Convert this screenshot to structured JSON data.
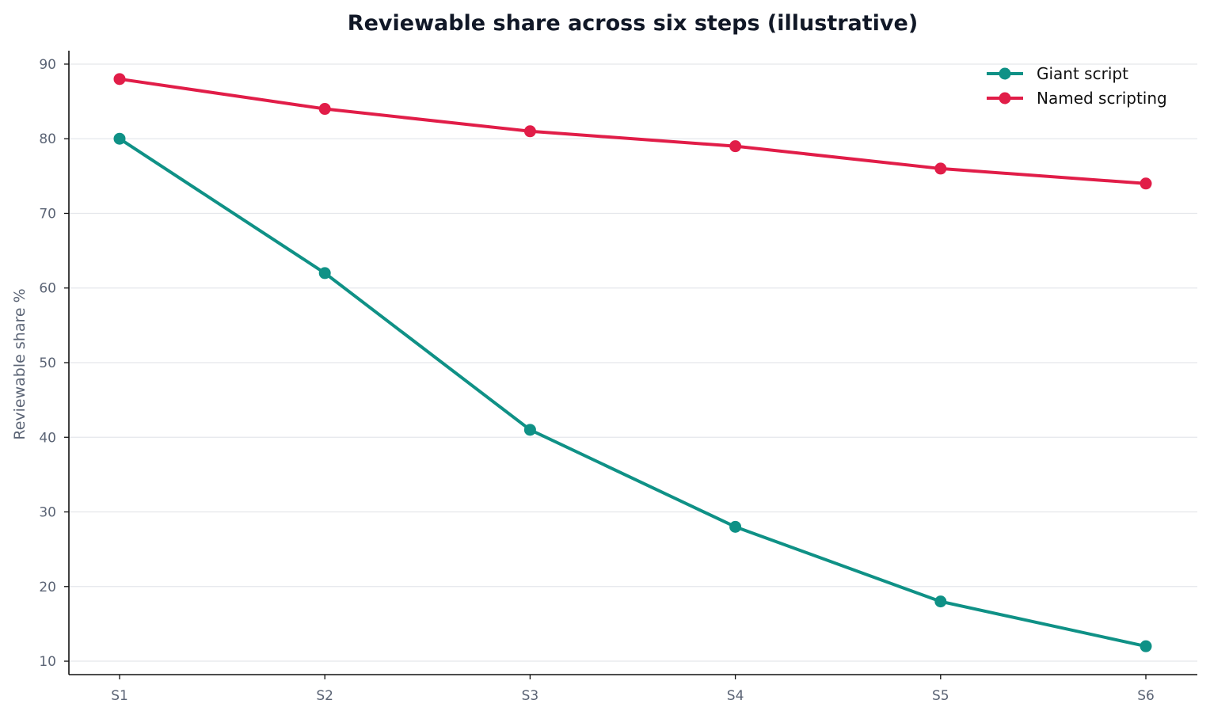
{
  "chart_data": {
    "type": "line",
    "title": "Reviewable share across six steps (illustrative)",
    "xlabel": "",
    "ylabel": "Reviewable share %",
    "categories": [
      "S1",
      "S2",
      "S3",
      "S4",
      "S5",
      "S6"
    ],
    "y_ticks": [
      10,
      20,
      30,
      40,
      50,
      60,
      70,
      80,
      90
    ],
    "ylim": [
      8.2,
      91.8
    ],
    "grid": "horizontal",
    "legend_position": "top-right",
    "series": [
      {
        "name": "Giant script",
        "color": "#0f9186",
        "values": [
          80,
          62,
          41,
          28,
          18,
          12
        ]
      },
      {
        "name": "Named scripting",
        "color": "#e11d48",
        "values": [
          88,
          84,
          81,
          79,
          76,
          74
        ]
      }
    ]
  }
}
